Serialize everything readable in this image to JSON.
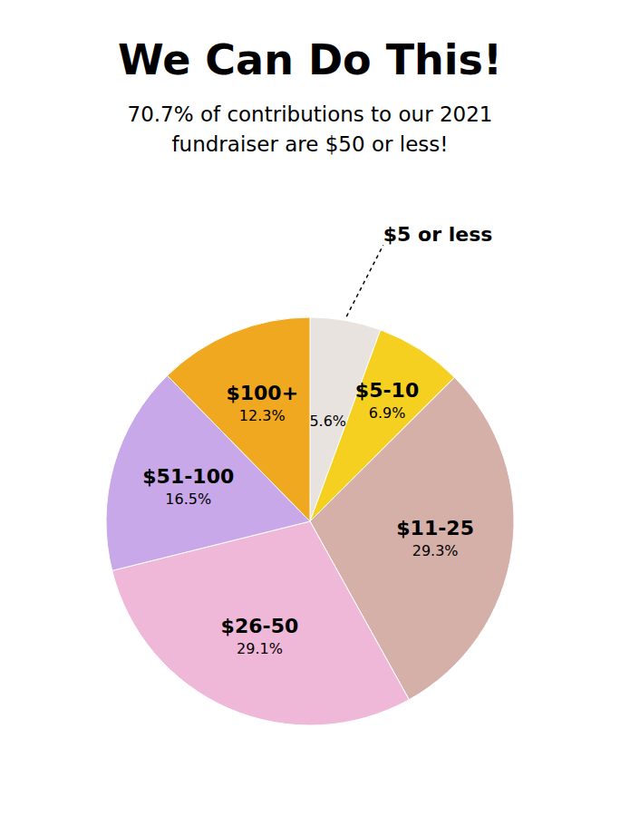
{
  "chart_data": {
    "type": "pie",
    "title": "We Can Do This!",
    "subtitle": "70.7% of contributions to our 2021\nfundraiser are $50 or less!",
    "categories": [
      "$5 or less",
      "$5-10",
      "$11-25",
      "$26-50",
      "$51-100",
      "$100+"
    ],
    "values": [
      5.6,
      6.9,
      29.3,
      29.1,
      16.5,
      12.3
    ],
    "value_labels": [
      "5.6%",
      "6.9%",
      "29.3%",
      "29.1%",
      "16.5%",
      "12.3%"
    ],
    "colors": [
      "#e8e3df",
      "#f5d020",
      "#d4b0a8",
      "#f0b8d8",
      "#c8a8e8",
      "#f0a820"
    ],
    "data_labels": true
  }
}
